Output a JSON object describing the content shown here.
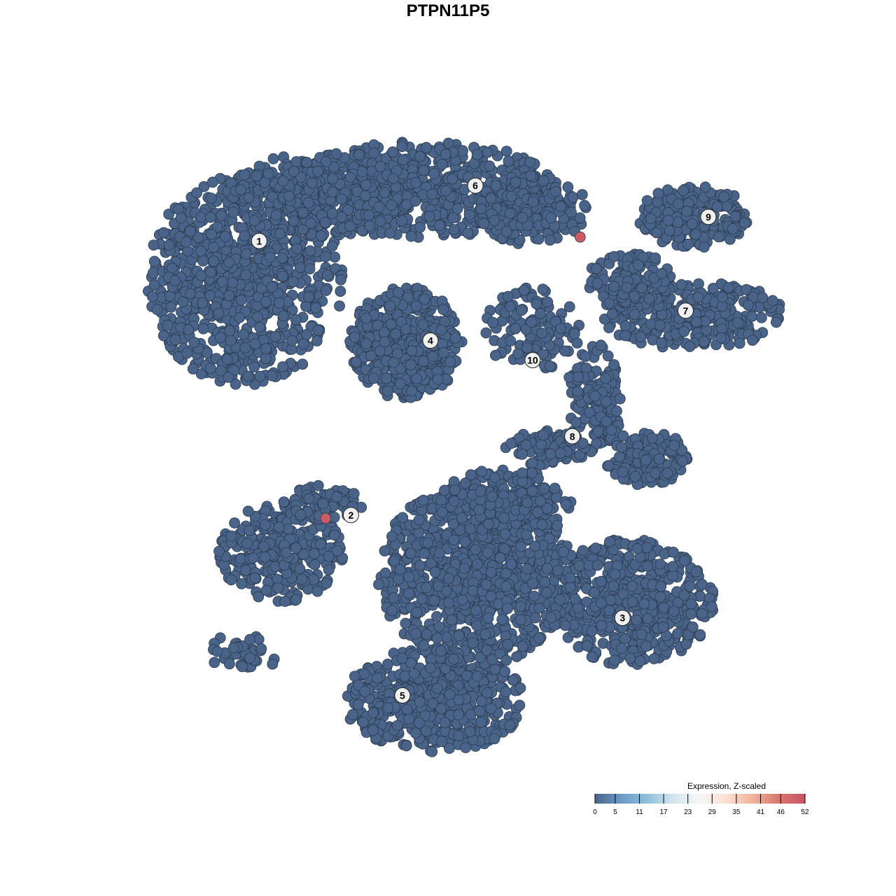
{
  "chart_data": {
    "type": "scatter",
    "title": "PTPN11P5",
    "xlabel": "",
    "ylabel": "",
    "axes_visible": false,
    "grid": false,
    "point_color_default": "#4a6489",
    "point_color_high": "#c95b66",
    "clusters": [
      {
        "label": "1",
        "x": -29.0,
        "y": 31.8
      },
      {
        "label": "2",
        "x": -14.9,
        "y": -10.3
      },
      {
        "label": "3",
        "x": 26.8,
        "y": -26.1
      },
      {
        "label": "4",
        "x": -2.7,
        "y": 16.5
      },
      {
        "label": "5",
        "x": -7.0,
        "y": -38.0
      },
      {
        "label": "6",
        "x": 4.2,
        "y": 40.3
      },
      {
        "label": "7",
        "x": 36.5,
        "y": 21.1
      },
      {
        "label": "8",
        "x": 19.1,
        "y": 1.8
      },
      {
        "label": "9",
        "x": 40.0,
        "y": 35.5
      },
      {
        "label": "10",
        "x": 13.0,
        "y": 13.5
      }
    ],
    "high_expression_points": [
      {
        "x": 20.3,
        "y": 32.4,
        "value": 52
      },
      {
        "x": -18.8,
        "y": -10.8,
        "value": 52
      }
    ],
    "legend": {
      "title": "Expression, Z-scaled",
      "placement": "bottom-right",
      "ticks": [
        "0",
        "5",
        "11",
        "17",
        "23",
        "29",
        "35",
        "41",
        "46",
        "52"
      ],
      "range": [
        0,
        52
      ],
      "colors": [
        "#4a6489",
        "#6a9ac6",
        "#8fc1dc",
        "#d4e6ef",
        "#f7f7f7",
        "#fbe0d3",
        "#f2b39c",
        "#d9766e",
        "#c55466"
      ]
    }
  }
}
